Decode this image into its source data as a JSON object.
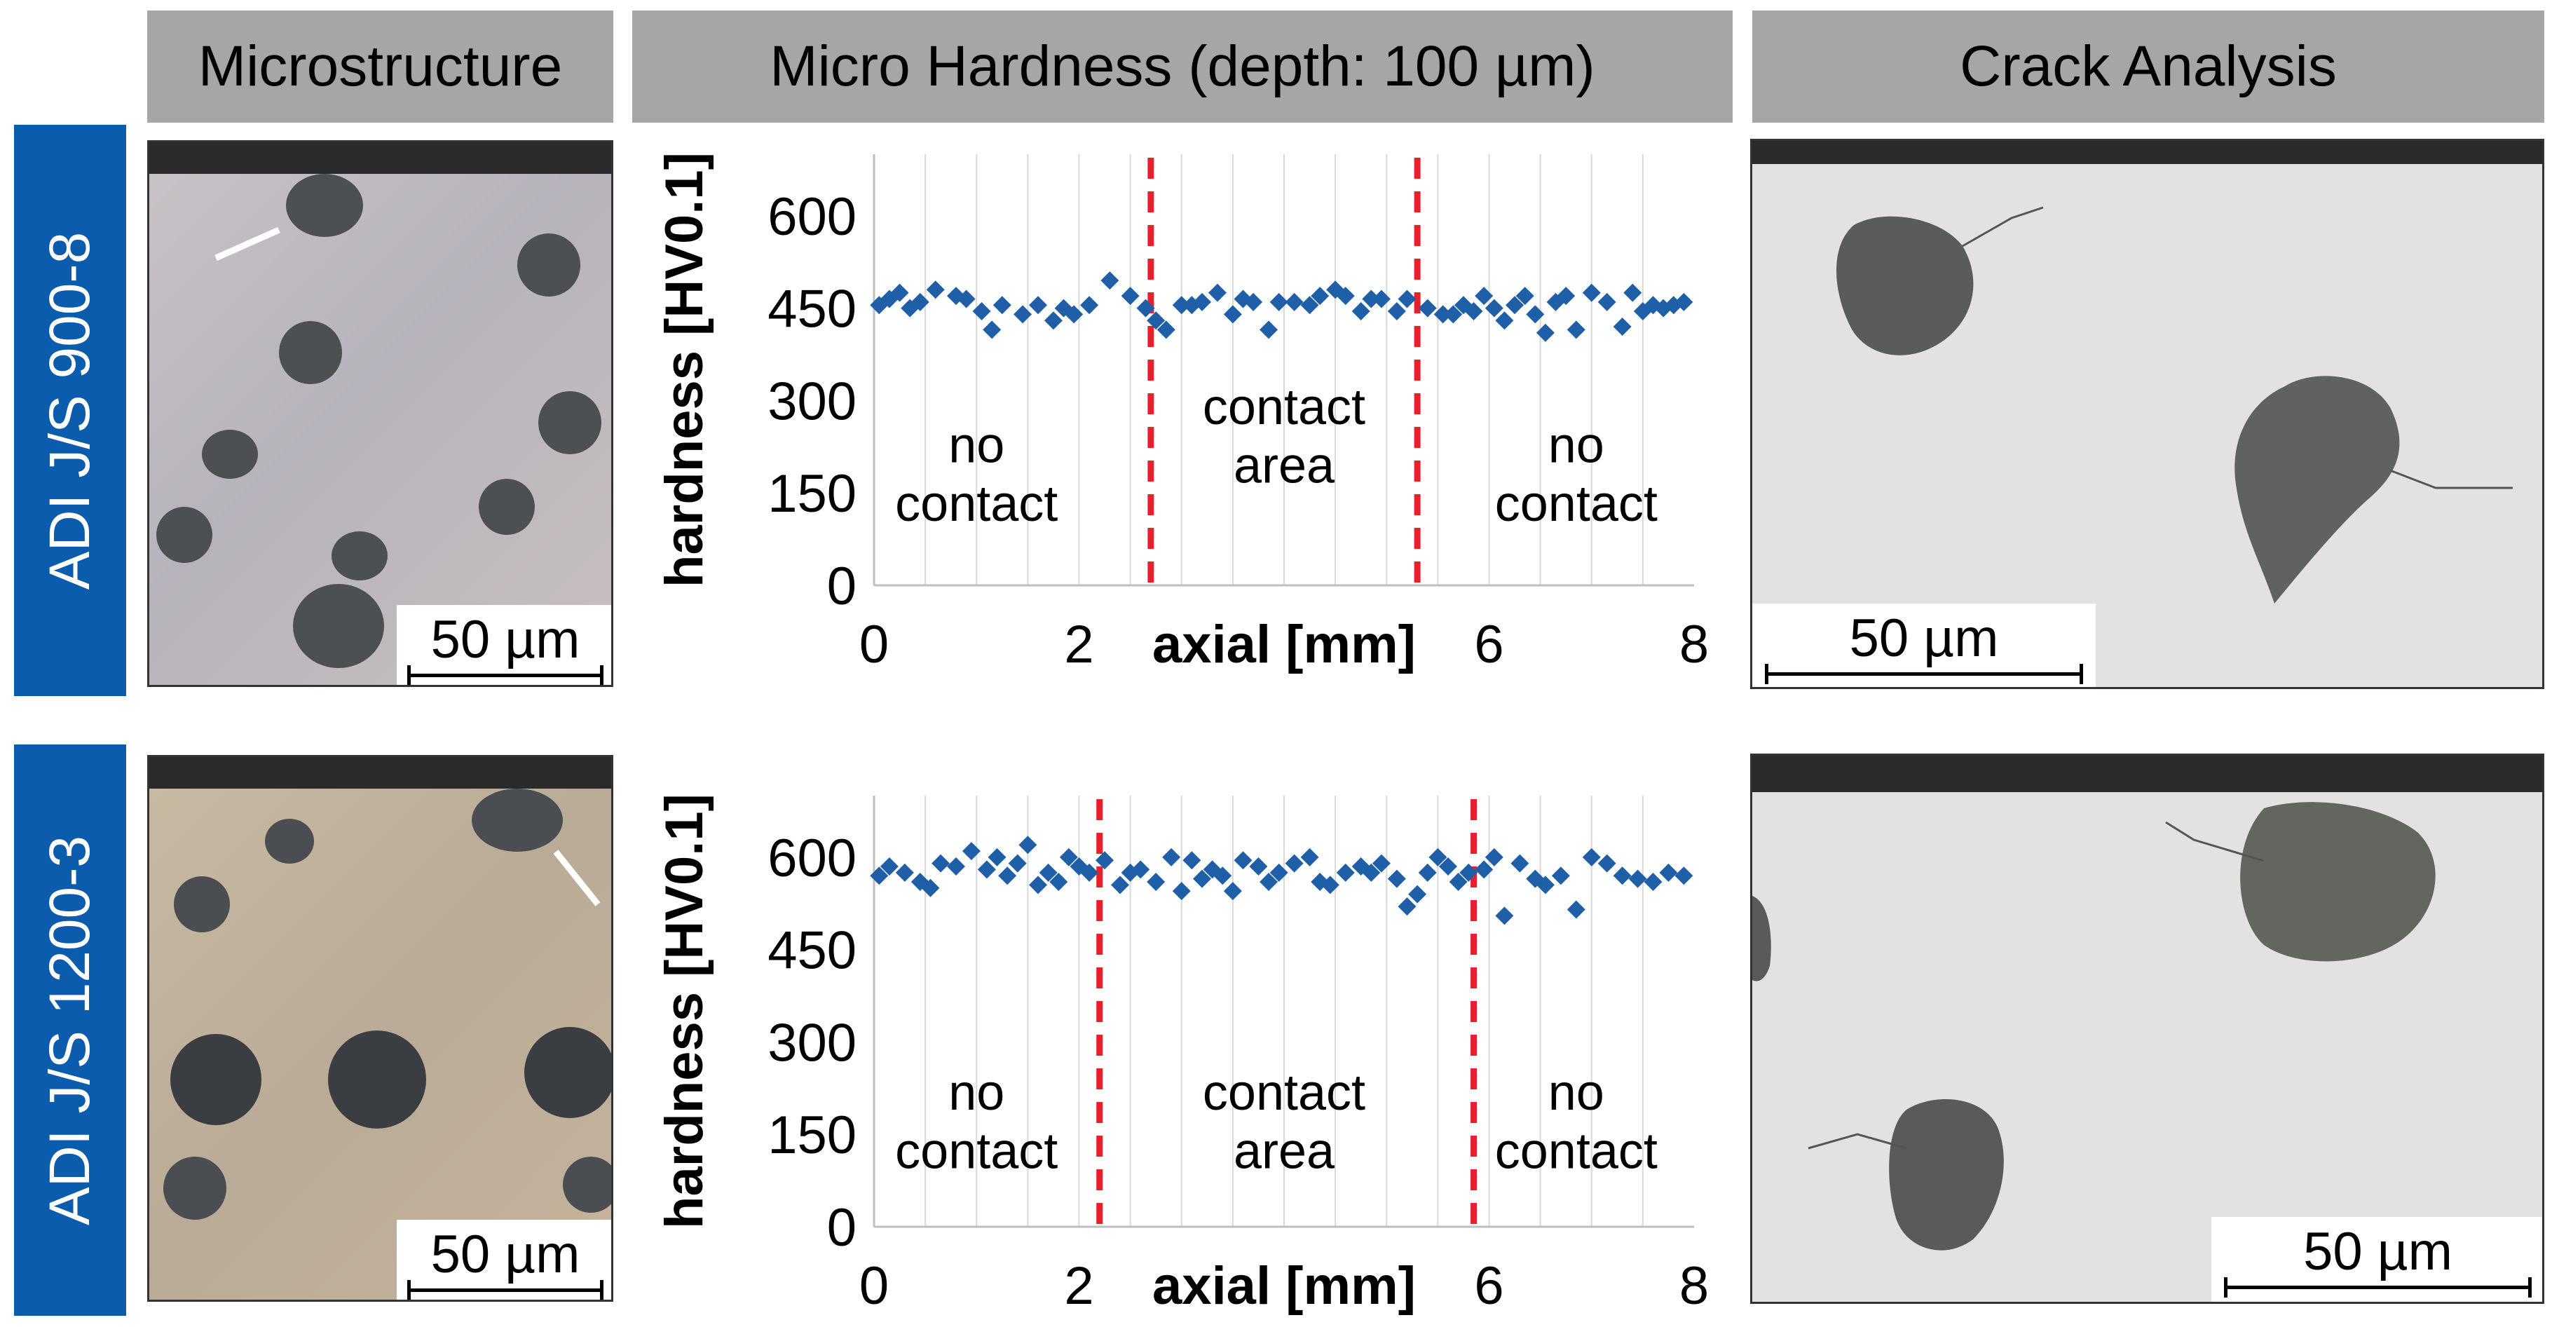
{
  "columns": {
    "microstructure": "Microstructure",
    "hardness": "Micro Hardness (depth: 100 µm)",
    "crack": "Crack Analysis"
  },
  "rows": [
    {
      "label": "ADI  J/S 900-8",
      "micro_scale": "50 µm",
      "crack_scale": "50 µm"
    },
    {
      "label": "ADI  J/S 1200-3",
      "micro_scale": "50 µm",
      "crack_scale": "50 µm"
    }
  ],
  "colors": {
    "header_bg": "#a6a6a6",
    "row_label_bg": "#0b5cad",
    "marker": "#1f5fa8",
    "divider": "#e8202b"
  },
  "chart_data": [
    {
      "type": "scatter",
      "xlabel": "axial [mm]",
      "ylabel": "hardness [HV0.1]",
      "xlim": [
        0,
        8
      ],
      "ylim": [
        0,
        700
      ],
      "xticks": [
        "0",
        "2",
        "6",
        "8"
      ],
      "yticks": [
        "600",
        "450",
        "300",
        "150",
        "0"
      ],
      "dividers": [
        2.7,
        5.3
      ],
      "regions": [
        {
          "line1": "no",
          "line2": "contact",
          "x": 1.0,
          "y_top": 200,
          "y_bot": 105
        },
        {
          "line1": "contact",
          "line2": "area",
          "x": 4.0,
          "y_top": 262,
          "y_bot": 167
        },
        {
          "line1": "no",
          "line2": "contact",
          "x": 6.85,
          "y_top": 200,
          "y_bot": 105
        }
      ],
      "series": [
        {
          "name": "hardness",
          "x": [
            0.05,
            0.15,
            0.25,
            0.35,
            0.45,
            0.6,
            0.8,
            0.9,
            1.05,
            1.15,
            1.25,
            1.45,
            1.6,
            1.75,
            1.85,
            1.95,
            2.1,
            2.3,
            2.5,
            2.65,
            2.75,
            2.85,
            3.0,
            3.1,
            3.2,
            3.35,
            3.5,
            3.6,
            3.7,
            3.85,
            3.95,
            4.1,
            4.25,
            4.35,
            4.5,
            4.6,
            4.75,
            4.85,
            4.95,
            5.1,
            5.2,
            5.4,
            5.55,
            5.65,
            5.75,
            5.85,
            5.95,
            6.05,
            6.15,
            6.25,
            6.35,
            6.45,
            6.55,
            6.65,
            6.75,
            6.85,
            7.0,
            7.15,
            7.3,
            7.4,
            7.5,
            7.6,
            7.7,
            7.8,
            7.9
          ],
          "y": [
            455,
            465,
            475,
            450,
            460,
            480,
            470,
            465,
            445,
            415,
            455,
            440,
            455,
            430,
            450,
            440,
            455,
            495,
            470,
            450,
            430,
            415,
            455,
            455,
            460,
            475,
            440,
            465,
            460,
            415,
            460,
            460,
            455,
            470,
            480,
            470,
            445,
            465,
            465,
            445,
            465,
            450,
            440,
            440,
            455,
            445,
            470,
            450,
            430,
            455,
            470,
            440,
            410,
            460,
            470,
            415,
            475,
            460,
            420,
            475,
            445,
            455,
            450,
            455,
            460
          ]
        }
      ]
    },
    {
      "type": "scatter",
      "xlabel": "axial [mm]",
      "ylabel": "hardness [HV0.1]",
      "xlim": [
        0,
        8
      ],
      "ylim": [
        0,
        700
      ],
      "xticks": [
        "0",
        "2",
        "6",
        "8"
      ],
      "yticks": [
        "600",
        "450",
        "300",
        "150",
        "0"
      ],
      "dividers": [
        2.2,
        5.85
      ],
      "regions": [
        {
          "line1": "no",
          "line2": "contact",
          "x": 1.0,
          "y_top": 190,
          "y_bot": 95
        },
        {
          "line1": "contact",
          "line2": "area",
          "x": 4.0,
          "y_top": 190,
          "y_bot": 95
        },
        {
          "line1": "no",
          "line2": "contact",
          "x": 6.85,
          "y_top": 190,
          "y_bot": 95
        }
      ],
      "series": [
        {
          "name": "hardness",
          "x": [
            0.05,
            0.15,
            0.3,
            0.45,
            0.55,
            0.65,
            0.8,
            0.95,
            1.1,
            1.2,
            1.3,
            1.4,
            1.5,
            1.6,
            1.7,
            1.8,
            1.9,
            2.0,
            2.1,
            2.25,
            2.4,
            2.5,
            2.6,
            2.75,
            2.9,
            3.0,
            3.1,
            3.2,
            3.3,
            3.4,
            3.5,
            3.6,
            3.75,
            3.85,
            3.95,
            4.1,
            4.25,
            4.35,
            4.45,
            4.6,
            4.75,
            4.85,
            4.95,
            5.1,
            5.2,
            5.3,
            5.4,
            5.5,
            5.6,
            5.7,
            5.8,
            5.95,
            6.05,
            6.15,
            6.3,
            6.45,
            6.55,
            6.7,
            6.85,
            7.0,
            7.15,
            7.3,
            7.45,
            7.6,
            7.75,
            7.9
          ],
          "y": [
            570,
            585,
            575,
            560,
            550,
            590,
            585,
            610,
            580,
            600,
            570,
            590,
            620,
            555,
            575,
            560,
            600,
            585,
            575,
            595,
            555,
            575,
            580,
            560,
            600,
            545,
            595,
            565,
            580,
            570,
            545,
            595,
            585,
            560,
            575,
            590,
            600,
            560,
            555,
            575,
            585,
            575,
            590,
            565,
            520,
            540,
            575,
            600,
            585,
            560,
            575,
            580,
            600,
            505,
            590,
            565,
            555,
            570,
            515,
            600,
            590,
            570,
            565,
            560,
            575,
            570
          ]
        }
      ]
    }
  ]
}
